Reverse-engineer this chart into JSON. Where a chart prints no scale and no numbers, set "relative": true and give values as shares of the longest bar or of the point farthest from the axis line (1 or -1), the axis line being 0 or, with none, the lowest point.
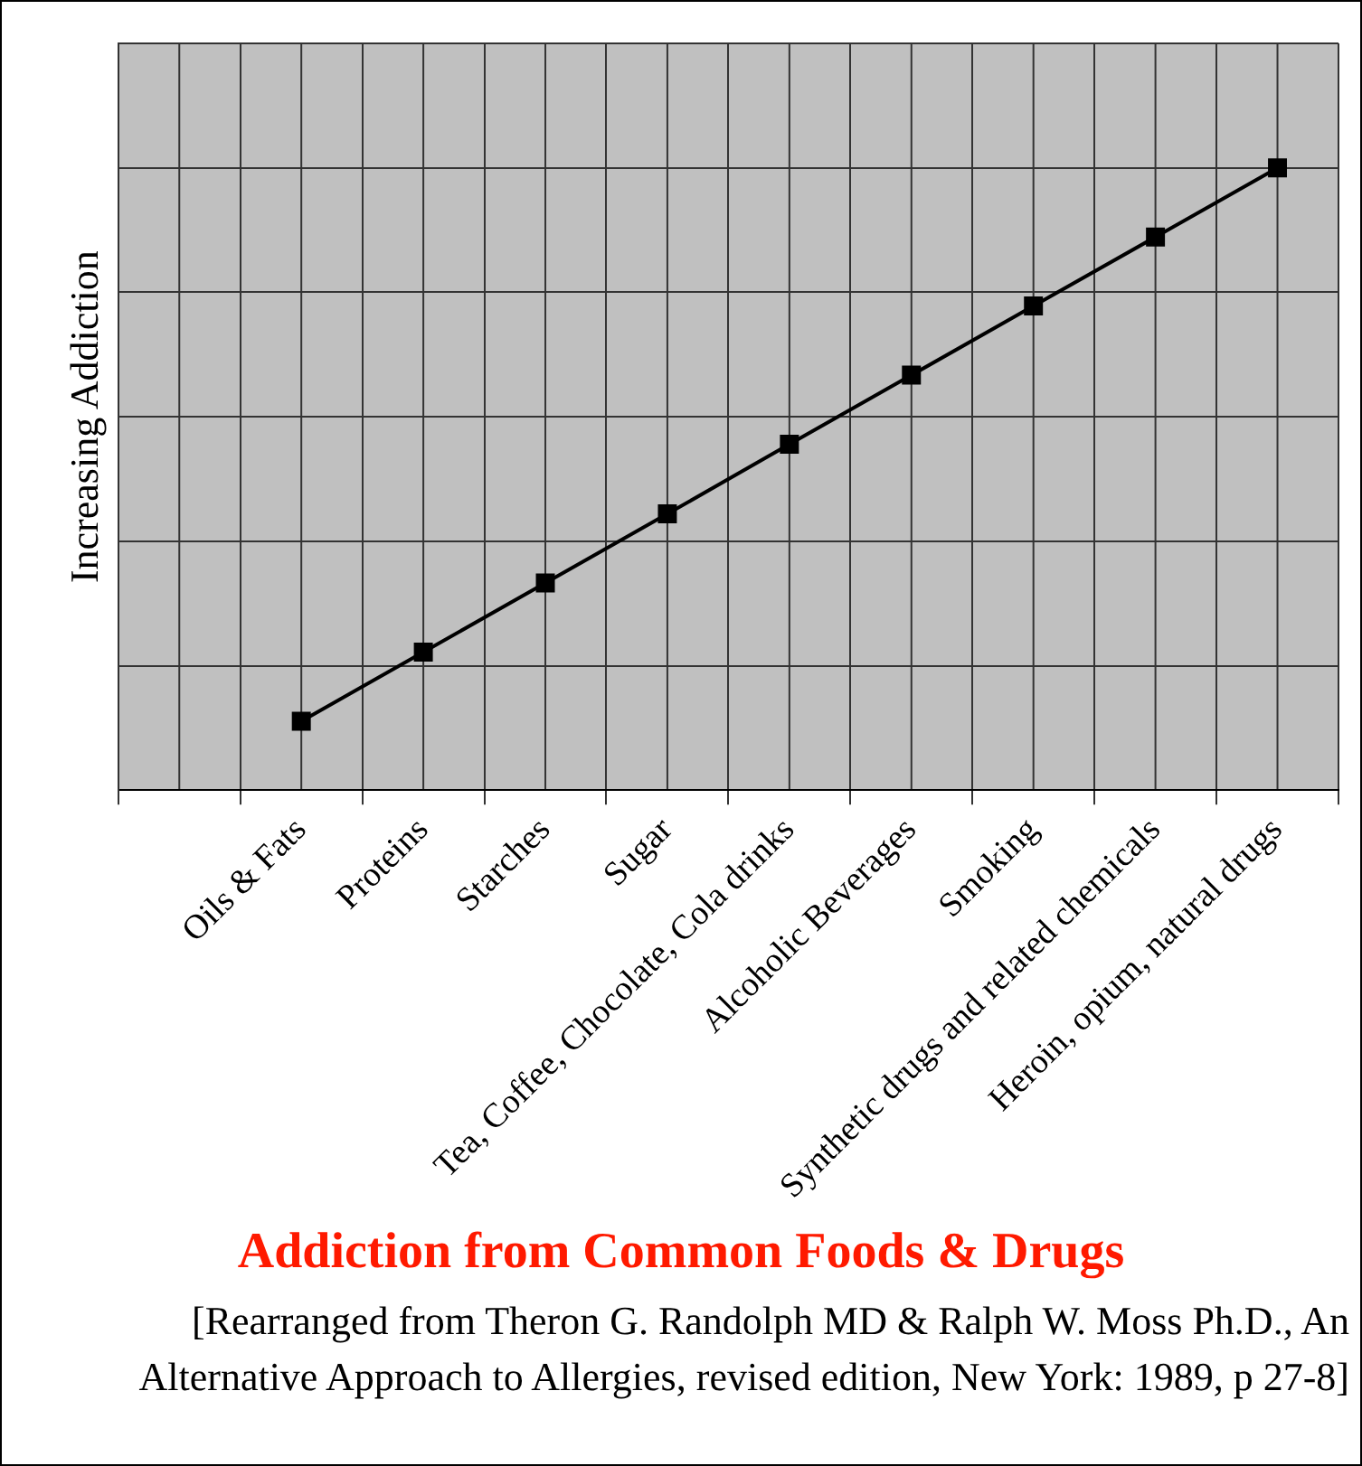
{
  "chart_data": {
    "type": "line",
    "title": "Addiction from Common Foods & Drugs",
    "ylabel": "Increasing Addiction",
    "categories": [
      null,
      "Oils & Fats",
      "Proteins",
      "Starches",
      "Sugar",
      "Tea, Coffee, Chocolate, Cola drinks",
      "Alcoholic Beverages",
      "Smoking",
      "Synthetic drugs and related chemicals",
      "Heroin, opium, natural drugs"
    ],
    "series": [
      {
        "color": "#000000",
        "values": [
          null,
          0.111,
          0.222,
          0.333,
          0.444,
          0.556,
          0.667,
          0.778,
          0.889,
          1
        ]
      }
    ],
    "relative": true,
    "grid": true,
    "legend": false,
    "marker": "square",
    "line_style": "solid",
    "annotations": [
      "[Rearranged from Theron G. Randolph MD & Ralph W. Moss Ph.D., An Alternative Approach to Allergies, revised edition, New York: 1989, p 27-8]"
    ]
  }
}
